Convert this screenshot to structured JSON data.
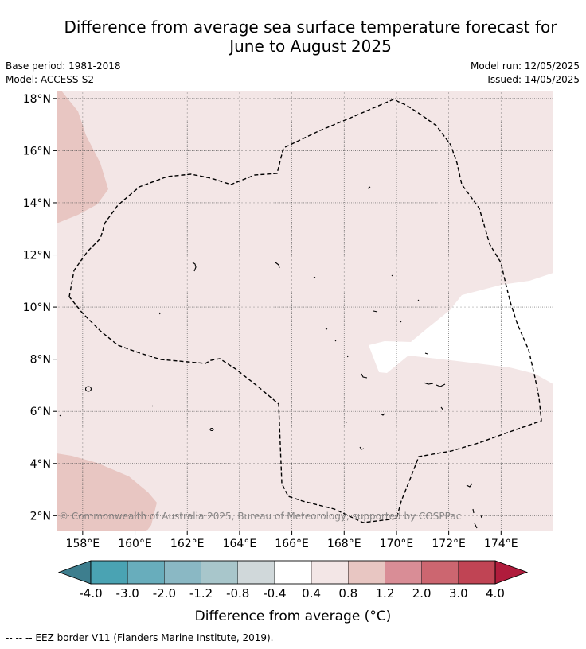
{
  "title": {
    "line1": "Difference from average sea surface temperature forecast for",
    "line2": "June to August 2025"
  },
  "meta": {
    "base_period": "Base period: 1981-2018",
    "model": "Model: ACCESS-S2",
    "model_run": "Model run: 12/05/2025",
    "issued": "Issued: 14/05/2025"
  },
  "copyright": "© Commonwealth of Australia 2025, Bureau of Meteorology, supported by COSPPac",
  "map": {
    "lat_labels": [
      "18°N",
      "16°N",
      "14°N",
      "12°N",
      "10°N",
      "8°N",
      "6°N",
      "4°N",
      "2°N"
    ],
    "lon_labels": [
      "158°E",
      "160°E",
      "162°E",
      "164°E",
      "166°E",
      "168°E",
      "170°E",
      "172°E",
      "174°E"
    ],
    "lat_values": [
      18,
      16,
      14,
      12,
      10,
      8,
      6,
      4,
      2
    ],
    "lon_values": [
      158,
      160,
      162,
      164,
      166,
      168,
      170,
      172,
      174
    ],
    "lon_range": [
      157,
      176
    ],
    "lat_range": [
      1.4,
      18.3
    ]
  },
  "colorbar": {
    "tick_labels": [
      "-4.0",
      "-3.0",
      "-2.0",
      "-1.2",
      "-0.8",
      "-0.4",
      "0.4",
      "0.8",
      "1.2",
      "2.0",
      "3.0",
      "4.0"
    ],
    "colors": [
      "#3d7e8e",
      "#4aa3b3",
      "#68adbc",
      "#8ab8c4",
      "#a8c6cb",
      "#d0d8da",
      "#ffffff",
      "#f3e6e6",
      "#e8c6c2",
      "#d98d96",
      "#cc6670",
      "#c04454",
      "#b01c3c"
    ],
    "label": "Difference from average ($^\\circ$C)"
  },
  "colorbar_label_text": "Difference from average (",
  "colorbar_label_unit": "°C)",
  "footer": "-- -- -- EEZ border V11 (Flanders Marine Institute, 2019).",
  "colors": {
    "base_fill": "#f3e6e6",
    "warm_fill": "#e8c6c2",
    "neutral_fill": "#ffffff"
  }
}
